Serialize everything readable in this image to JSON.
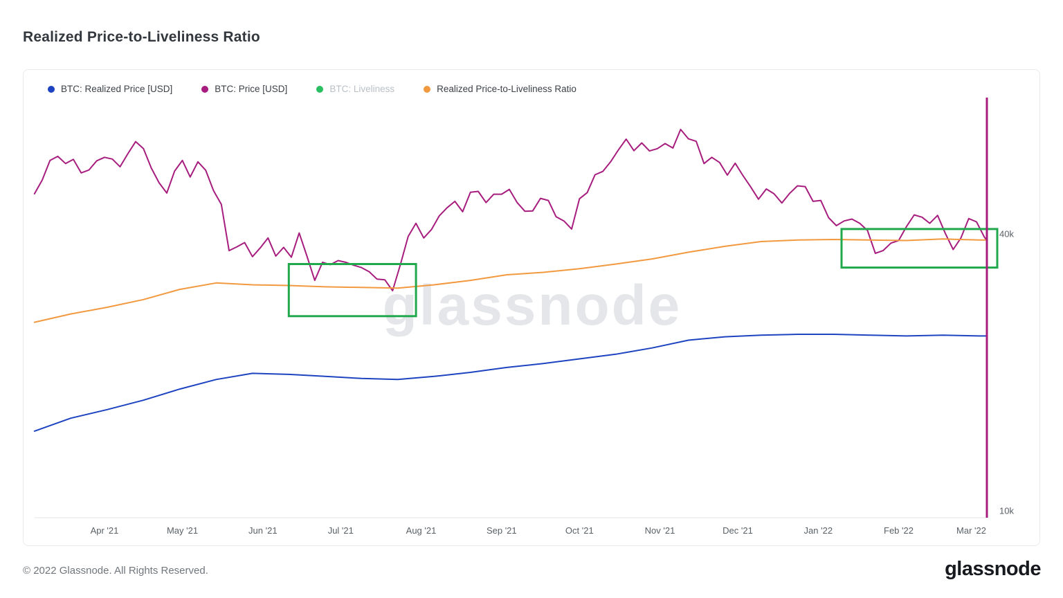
{
  "header": {
    "title": "Realized Price-to-Liveliness Ratio"
  },
  "legend": {
    "items": [
      {
        "label": "BTC: Realized Price [USD]",
        "color": "#1d43c0",
        "muted": false
      },
      {
        "label": "BTC: Price [USD]",
        "color": "#a71d7e",
        "muted": false
      },
      {
        "label": "BTC: Liveliness",
        "color": "#2bbf63",
        "muted": true
      },
      {
        "label": "Realized Price-to-Liveliness Ratio",
        "color": "#f2993f",
        "muted": false
      }
    ]
  },
  "footer": {
    "copyright": "© 2022 Glassnode. All Rights Reserved.",
    "brand": "glassnode"
  },
  "chart_data": {
    "type": "line",
    "title": "Realized Price-to-Liveliness Ratio",
    "y_scale": "log",
    "y_axis_side": "right",
    "y_unit": "USD",
    "grid": false,
    "watermark": "glassnode",
    "x_range": {
      "start": "2021-03-05",
      "end": "2022-03-07"
    },
    "ylim_k": [
      10,
      75
    ],
    "y_ticks": [
      {
        "label": "40k",
        "value_k": 40
      },
      {
        "label": "10k",
        "value_k": 10
      }
    ],
    "x_ticks": [
      {
        "label": "Apr '21",
        "date": "2021-04-01"
      },
      {
        "label": "May '21",
        "date": "2021-05-01"
      },
      {
        "label": "Jun '21",
        "date": "2021-06-01"
      },
      {
        "label": "Jul '21",
        "date": "2021-07-01"
      },
      {
        "label": "Aug '21",
        "date": "2021-08-01"
      },
      {
        "label": "Sep '21",
        "date": "2021-09-01"
      },
      {
        "label": "Oct '21",
        "date": "2021-10-01"
      },
      {
        "label": "Nov '21",
        "date": "2021-11-01"
      },
      {
        "label": "Dec '21",
        "date": "2021-12-01"
      },
      {
        "label": "Jan '22",
        "date": "2022-01-01"
      },
      {
        "label": "Feb '22",
        "date": "2022-02-01"
      },
      {
        "label": "Mar '22",
        "date": "2022-03-01"
      }
    ],
    "series": [
      {
        "id": "btc-price",
        "name": "BTC: Price [USD]",
        "color": "#a71d7e",
        "start": "2021-03-05",
        "step_days": 3,
        "values_k_usd": [
          48.9,
          52.4,
          57.8,
          59.0,
          56.9,
          58.1,
          54.3,
          55.1,
          57.7,
          58.7,
          58.2,
          56.0,
          59.8,
          63.5,
          61.3,
          55.7,
          51.7,
          49.1,
          54.8,
          57.8,
          53.2,
          57.4,
          55.0,
          49.7,
          46.4,
          36.8,
          37.5,
          38.3,
          35.7,
          37.3,
          39.2,
          35.8,
          37.4,
          35.6,
          40.2,
          35.8,
          31.7,
          34.7,
          34.3,
          35.0,
          34.7,
          34.2,
          33.8,
          33.1,
          31.9,
          31.8,
          30.1,
          34.3,
          39.5,
          42.2,
          39.2,
          40.9,
          43.8,
          45.6,
          47.1,
          44.7,
          49.3,
          49.5,
          46.8,
          48.8,
          48.8,
          50.0,
          46.8,
          44.8,
          44.9,
          47.8,
          47.3,
          43.6,
          42.7,
          41.0,
          47.7,
          49.2,
          53.8,
          54.7,
          57.4,
          60.9,
          64.3,
          60.7,
          63.1,
          60.6,
          61.3,
          62.9,
          61.5,
          67.5,
          64.4,
          63.6,
          56.9,
          58.7,
          57.2,
          53.7,
          57.0,
          53.6,
          50.6,
          47.6,
          50.1,
          48.9,
          46.7,
          49.0,
          50.9,
          50.7,
          47.1,
          47.3,
          43.4,
          41.7,
          42.7,
          43.1,
          42.2,
          40.7,
          36.3,
          36.8,
          38.2,
          38.7,
          41.5,
          44.0,
          43.5,
          42.2,
          43.9,
          40.1,
          37.0,
          39.2,
          43.2,
          42.5,
          39.4,
          38.7
        ]
      },
      {
        "id": "realized-price",
        "name": "BTC: Realized Price [USD]",
        "color": "#1d43c0",
        "start": "2021-03-05",
        "step_days": 14,
        "values_k_usd": [
          14.9,
          15.9,
          16.6,
          17.4,
          18.4,
          19.3,
          19.9,
          19.8,
          19.6,
          19.4,
          19.3,
          19.6,
          20.0,
          20.5,
          20.9,
          21.4,
          21.9,
          22.6,
          23.5,
          23.9,
          24.1,
          24.2,
          24.2,
          24.1,
          24.0,
          24.1,
          24.0
        ]
      },
      {
        "id": "ratio",
        "name": "Realized Price-to-Liveliness Ratio",
        "color": "#f2993f",
        "start": "2021-03-05",
        "step_days": 14,
        "values_k_usd": [
          25.7,
          26.8,
          27.7,
          28.8,
          30.3,
          31.3,
          31.0,
          30.9,
          30.7,
          30.6,
          30.5,
          31.0,
          31.7,
          32.6,
          33.0,
          33.6,
          34.4,
          35.3,
          36.5,
          37.6,
          38.5,
          38.8,
          38.9,
          38.8,
          38.7,
          39.0,
          38.8
        ]
      }
    ],
    "annotations": {
      "highlight_boxes": [
        {
          "x1": "2021-06-11",
          "x2": "2021-07-30",
          "y1_k": 26.5,
          "y2_k": 34.4,
          "color": "#22a84c"
        },
        {
          "x1": "2022-01-10",
          "x2": "2022-03-11",
          "y1_k": 33.8,
          "y2_k": 41.0,
          "color": "#22a84c"
        }
      ],
      "end_marker_line": {
        "date": "2022-03-07",
        "color": "#a71d7e"
      }
    }
  }
}
